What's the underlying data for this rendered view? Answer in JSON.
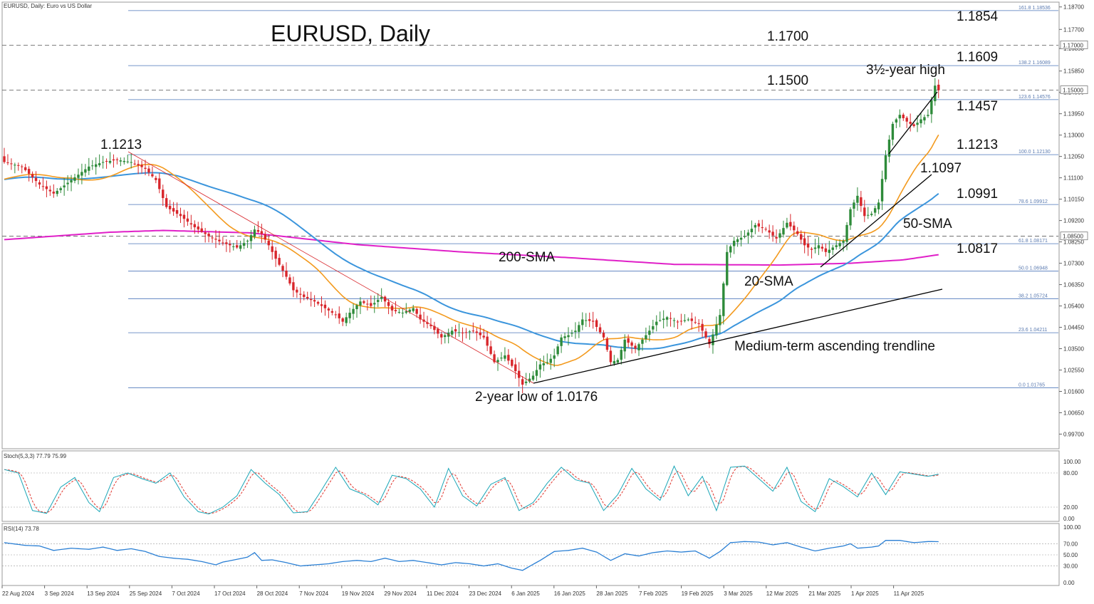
{
  "window": {
    "header": "EURUSD, Daily:  Euro vs US Dollar",
    "big_title": "EURUSD, Daily",
    "stoch_header": "Stoch(5,3,3) 77.79 75.99",
    "rsi_header": "RSI(14) 73.78"
  },
  "colors": {
    "bull": "#2e8b3a",
    "bear": "#d8262b",
    "sma20": "#f39a1e",
    "sma50": "#3b95dc",
    "sma200": "#e020c8",
    "fib": "#4a74b8",
    "stoch_main": "#1aa6b7",
    "stoch_signal": "#e0342c",
    "rsi": "#2a7fd4",
    "trend": "#000000",
    "fan": "#d8262b"
  },
  "annotations": {
    "a1854": "1.1854",
    "a1700": "1.1700",
    "a1609": "1.1609",
    "high": "3½-year high",
    "a1500": "1.1500",
    "a1457": "1.1457",
    "a1213_left": "1.1213",
    "a1213_right": "1.1213",
    "a1097": "1.1097",
    "a0991": "1.0991",
    "sma50": "50-SMA",
    "a0817": "1.0817",
    "sma200": "200-SMA",
    "sma20": "20-SMA",
    "trendline": "Medium-term ascending trendline",
    "low": "2-year low of 1.0176"
  },
  "chart_data": [
    {
      "type": "candlestick",
      "title": "EURUSD, Daily",
      "x_axis": [
        "22 Aug 2024",
        "3 Sep 2024",
        "13 Sep 2024",
        "25 Sep 2024",
        "7 Oct 2024",
        "17 Oct 2024",
        "28 Oct 2024",
        "7 Nov 2024",
        "19 Nov 2024",
        "29 Nov 2024",
        "11 Dec 2024",
        "23 Dec 2024",
        "6 Jan 2025",
        "16 Jan 2025",
        "28 Jan 2025",
        "7 Feb 2025",
        "19 Feb 2025",
        "3 Mar 2025",
        "12 Mar 2025",
        "21 Mar 2025",
        "1 Apr 2025",
        "11 Apr 2025"
      ],
      "y_ticks": [
        "1.18700",
        "1.17700",
        "1.16850",
        "1.15850",
        "1.14900",
        "1.13950",
        "1.13000",
        "1.12050",
        "1.11100",
        "1.10150",
        "1.09200",
        "1.08250",
        "1.07300",
        "1.06350",
        "1.05400",
        "1.04450",
        "1.03500",
        "1.02550",
        "1.01600",
        "1.00650",
        "0.99700"
      ],
      "ylim": [
        0.9905,
        1.1885
      ],
      "price_labels": [
        "1.17000",
        "1.15000",
        "1.08500"
      ],
      "fibonacci": [
        {
          "level": "161.8",
          "price": 1.18536,
          "label": "161.8  1.18536"
        },
        {
          "level": "138.2",
          "price": 1.16089,
          "label": "138.2  1.16089"
        },
        {
          "level": "123.6",
          "price": 1.14576,
          "label": "123.6  1.14576"
        },
        {
          "level": "100.0",
          "price": 1.1213,
          "label": "100.0  1.12130"
        },
        {
          "level": "78.6",
          "price": 1.09912,
          "label": "78.6  1.09912"
        },
        {
          "level": "61.8",
          "price": 1.08171,
          "label": "61.8  1.08171"
        },
        {
          "level": "50.0",
          "price": 1.06948,
          "label": "50.0  1.06948"
        },
        {
          "level": "38.2",
          "price": 1.05724,
          "label": "38.2  1.05724"
        },
        {
          "level": "23.6",
          "price": 1.04211,
          "label": "23.6  1.04211"
        },
        {
          "level": "0.0",
          "price": 1.01765,
          "label": "0.0  1.01765"
        }
      ],
      "horizontal_levels": [
        1.17,
        1.15,
        1.085
      ],
      "close_anchors": [
        [
          0,
          1.118
        ],
        [
          5,
          1.116
        ],
        [
          10,
          1.108
        ],
        [
          14,
          1.104
        ],
        [
          19,
          1.11
        ],
        [
          24,
          1.116
        ],
        [
          28,
          1.118
        ],
        [
          32,
          1.119
        ],
        [
          36,
          1.118
        ],
        [
          40,
          1.115
        ],
        [
          43,
          1.11
        ],
        [
          46,
          1.098
        ],
        [
          50,
          1.094
        ],
        [
          54,
          1.089
        ],
        [
          58,
          1.085
        ],
        [
          62,
          1.082
        ],
        [
          66,
          1.08
        ],
        [
          69,
          1.083
        ],
        [
          71,
          1.088
        ],
        [
          73,
          1.086
        ],
        [
          75,
          1.081
        ],
        [
          77,
          1.075
        ],
        [
          80,
          1.067
        ],
        [
          82,
          1.061
        ],
        [
          85,
          1.058
        ],
        [
          88,
          1.056
        ],
        [
          91,
          1.053
        ],
        [
          94,
          1.05
        ],
        [
          96,
          1.047
        ],
        [
          98,
          1.051
        ],
        [
          101,
          1.056
        ],
        [
          104,
          1.054
        ],
        [
          107,
          1.058
        ],
        [
          110,
          1.052
        ],
        [
          113,
          1.051
        ],
        [
          116,
          1.053
        ],
        [
          118,
          1.048
        ],
        [
          121,
          1.045
        ],
        [
          124,
          1.04
        ],
        [
          127,
          1.043
        ],
        [
          130,
          1.042
        ],
        [
          133,
          1.043
        ],
        [
          136,
          1.04
        ],
        [
          139,
          1.029
        ],
        [
          142,
          1.032
        ],
        [
          145,
          1.025
        ],
        [
          147,
          1.019
        ],
        [
          150,
          1.023
        ],
        [
          152,
          1.028
        ],
        [
          154,
          1.029
        ],
        [
          156,
          1.032
        ],
        [
          158,
          1.04
        ],
        [
          160,
          1.041
        ],
        [
          162,
          1.043
        ],
        [
          164,
          1.048
        ],
        [
          167,
          1.047
        ],
        [
          170,
          1.04
        ],
        [
          172,
          1.029
        ],
        [
          174,
          1.03
        ],
        [
          176,
          1.039
        ],
        [
          179,
          1.035
        ],
        [
          182,
          1.041
        ],
        [
          185,
          1.047
        ],
        [
          188,
          1.049
        ],
        [
          191,
          1.047
        ],
        [
          194,
          1.048
        ],
        [
          197,
          1.046
        ],
        [
          200,
          1.037
        ],
        [
          203,
          1.05
        ],
        [
          205,
          1.078
        ],
        [
          207,
          1.083
        ],
        [
          210,
          1.085
        ],
        [
          213,
          1.09
        ],
        [
          216,
          1.088
        ],
        [
          219,
          1.084
        ],
        [
          222,
          1.091
        ],
        [
          225,
          1.086
        ],
        [
          227,
          1.081
        ],
        [
          229,
          1.079
        ],
        [
          231,
          1.081
        ],
        [
          233,
          1.078
        ],
        [
          236,
          1.081
        ],
        [
          238,
          1.083
        ],
        [
          240,
          1.097
        ],
        [
          242,
          1.103
        ],
        [
          244,
          1.094
        ],
        [
          246,
          1.095
        ],
        [
          248,
          1.1
        ],
        [
          250,
          1.121
        ],
        [
          252,
          1.135
        ],
        [
          254,
          1.139
        ],
        [
          256,
          1.136
        ],
        [
          258,
          1.134
        ],
        [
          260,
          1.137
        ],
        [
          262,
          1.139
        ],
        [
          264,
          1.152
        ],
        [
          265,
          1.15
        ]
      ],
      "sma200_anchors": [
        [
          0,
          1.0835
        ],
        [
          30,
          1.0868
        ],
        [
          45,
          1.0876
        ],
        [
          70,
          1.0865
        ],
        [
          100,
          1.0813
        ],
        [
          130,
          1.078
        ],
        [
          160,
          1.0755
        ],
        [
          190,
          1.0725
        ],
        [
          220,
          1.0722
        ],
        [
          240,
          1.073
        ],
        [
          255,
          1.0745
        ],
        [
          265,
          1.0768
        ]
      ],
      "series": [
        {
          "name": "20-SMA"
        },
        {
          "name": "50-SMA"
        },
        {
          "name": "200-SMA"
        }
      ]
    },
    {
      "type": "line",
      "title": "Stoch(5,3,3) 77.79 75.99",
      "ylim": [
        0,
        100
      ],
      "y_ticks": [
        "100.00",
        "80.00",
        "20.00",
        "0.00"
      ],
      "levels": [
        80,
        20
      ],
      "last_values": {
        "main": 77.79,
        "signal": 75.99
      },
      "main_anchors": [
        [
          0,
          86
        ],
        [
          4,
          80
        ],
        [
          8,
          14
        ],
        [
          12,
          9
        ],
        [
          16,
          55
        ],
        [
          20,
          72
        ],
        [
          24,
          28
        ],
        [
          27,
          12
        ],
        [
          31,
          72
        ],
        [
          35,
          80
        ],
        [
          39,
          70
        ],
        [
          43,
          62
        ],
        [
          47,
          80
        ],
        [
          51,
          38
        ],
        [
          55,
          12
        ],
        [
          58,
          8
        ],
        [
          62,
          20
        ],
        [
          66,
          40
        ],
        [
          70,
          86
        ],
        [
          74,
          62
        ],
        [
          78,
          42
        ],
        [
          82,
          10
        ],
        [
          86,
          12
        ],
        [
          90,
          50
        ],
        [
          94,
          90
        ],
        [
          98,
          52
        ],
        [
          102,
          42
        ],
        [
          106,
          24
        ],
        [
          110,
          76
        ],
        [
          114,
          70
        ],
        [
          118,
          52
        ],
        [
          122,
          20
        ],
        [
          126,
          88
        ],
        [
          130,
          40
        ],
        [
          134,
          22
        ],
        [
          138,
          60
        ],
        [
          142,
          72
        ],
        [
          146,
          14
        ],
        [
          150,
          28
        ],
        [
          154,
          62
        ],
        [
          158,
          90
        ],
        [
          162,
          68
        ],
        [
          166,
          62
        ],
        [
          170,
          14
        ],
        [
          174,
          42
        ],
        [
          178,
          88
        ],
        [
          182,
          52
        ],
        [
          186,
          32
        ],
        [
          190,
          92
        ],
        [
          194,
          40
        ],
        [
          198,
          74
        ],
        [
          202,
          14
        ],
        [
          206,
          90
        ],
        [
          210,
          92
        ],
        [
          214,
          70
        ],
        [
          218,
          48
        ],
        [
          222,
          90
        ],
        [
          226,
          30
        ],
        [
          230,
          12
        ],
        [
          234,
          70
        ],
        [
          238,
          56
        ],
        [
          242,
          38
        ],
        [
          246,
          80
        ],
        [
          250,
          42
        ],
        [
          254,
          82
        ],
        [
          258,
          78
        ],
        [
          262,
          74
        ],
        [
          265,
          77.79
        ]
      ],
      "signal_lag": 2
    },
    {
      "type": "line",
      "title": "RSI(14) 73.78",
      "ylim": [
        0,
        100
      ],
      "y_ticks": [
        "100.00",
        "70.00",
        "50.00",
        "30.00",
        "0.00"
      ],
      "levels": [
        70,
        50,
        30
      ],
      "last_value": 73.78,
      "anchors": [
        [
          0,
          72
        ],
        [
          6,
          67
        ],
        [
          10,
          66
        ],
        [
          14,
          58
        ],
        [
          19,
          62
        ],
        [
          24,
          60
        ],
        [
          28,
          64
        ],
        [
          32,
          58
        ],
        [
          36,
          61
        ],
        [
          40,
          56
        ],
        [
          44,
          47
        ],
        [
          48,
          44
        ],
        [
          52,
          42
        ],
        [
          56,
          38
        ],
        [
          60,
          32
        ],
        [
          62,
          37
        ],
        [
          66,
          42
        ],
        [
          69,
          46
        ],
        [
          71,
          54
        ],
        [
          73,
          40
        ],
        [
          76,
          41
        ],
        [
          80,
          36
        ],
        [
          84,
          30
        ],
        [
          88,
          32
        ],
        [
          92,
          34
        ],
        [
          96,
          38
        ],
        [
          100,
          40
        ],
        [
          104,
          38
        ],
        [
          108,
          44
        ],
        [
          112,
          38
        ],
        [
          116,
          40
        ],
        [
          120,
          36
        ],
        [
          124,
          32
        ],
        [
          128,
          36
        ],
        [
          132,
          34
        ],
        [
          136,
          30
        ],
        [
          140,
          34
        ],
        [
          144,
          26
        ],
        [
          147,
          22
        ],
        [
          150,
          33
        ],
        [
          152,
          40
        ],
        [
          156,
          56
        ],
        [
          160,
          58
        ],
        [
          164,
          62
        ],
        [
          168,
          55
        ],
        [
          172,
          40
        ],
        [
          176,
          52
        ],
        [
          180,
          48
        ],
        [
          184,
          54
        ],
        [
          188,
          57
        ],
        [
          192,
          55
        ],
        [
          196,
          57
        ],
        [
          200,
          44
        ],
        [
          203,
          56
        ],
        [
          206,
          72
        ],
        [
          210,
          74
        ],
        [
          214,
          73
        ],
        [
          218,
          68
        ],
        [
          222,
          72
        ],
        [
          226,
          64
        ],
        [
          230,
          57
        ],
        [
          234,
          62
        ],
        [
          238,
          66
        ],
        [
          240,
          70
        ],
        [
          242,
          62
        ],
        [
          246,
          64
        ],
        [
          248,
          66
        ],
        [
          250,
          76
        ],
        [
          254,
          76
        ],
        [
          258,
          72
        ],
        [
          262,
          74
        ],
        [
          265,
          73.78
        ]
      ]
    }
  ]
}
